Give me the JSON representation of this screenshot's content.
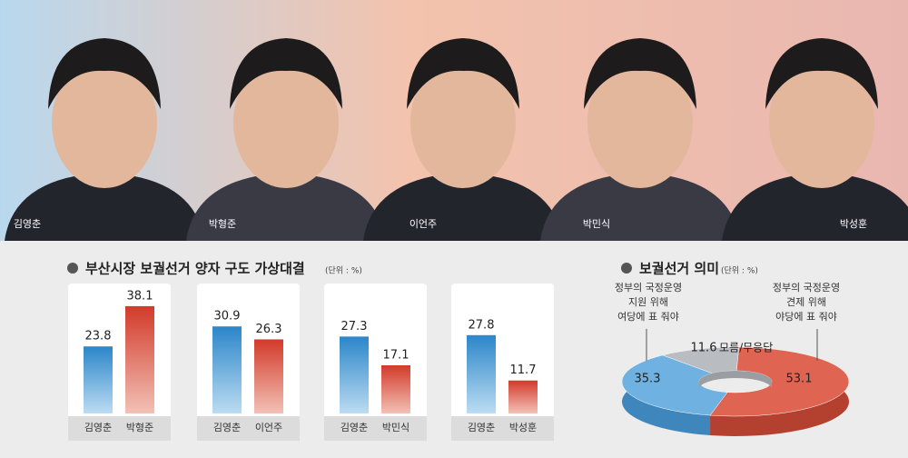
{
  "photo_captions": [
    "김영춘",
    "박형준",
    "이언주",
    "박민식",
    "박성훈"
  ],
  "chart_data": [
    {
      "type": "bar",
      "title": "부산시장 보궐선거 양자 구도 가상대결",
      "unit": "(단위 : %)",
      "colors": [
        "#2b86c9",
        "#d23a2a"
      ],
      "panels": [
        {
          "categories": [
            "김영춘",
            "박형준"
          ],
          "values": [
            23.8,
            38.1
          ]
        },
        {
          "categories": [
            "김영춘",
            "이언주"
          ],
          "values": [
            30.9,
            26.3
          ]
        },
        {
          "categories": [
            "김영춘",
            "박민식"
          ],
          "values": [
            27.3,
            17.1
          ]
        },
        {
          "categories": [
            "김영춘",
            "박성훈"
          ],
          "values": [
            27.8,
            11.7
          ]
        }
      ]
    },
    {
      "type": "pie",
      "title": "보궐선거 의미",
      "unit": "(단위 : %)",
      "categories": [
        [
          "모름/무응답"
        ],
        [
          "정부의 국정운영",
          "견제 위해",
          "야당에 표 줘야"
        ],
        [
          "정부의 국정운영",
          "지원 위해",
          "여당에 표 줘야"
        ]
      ],
      "values": [
        11.6,
        53.1,
        35.3
      ],
      "colors": [
        "#b9bcc0",
        "#e06452",
        "#6fb1e0"
      ]
    }
  ]
}
